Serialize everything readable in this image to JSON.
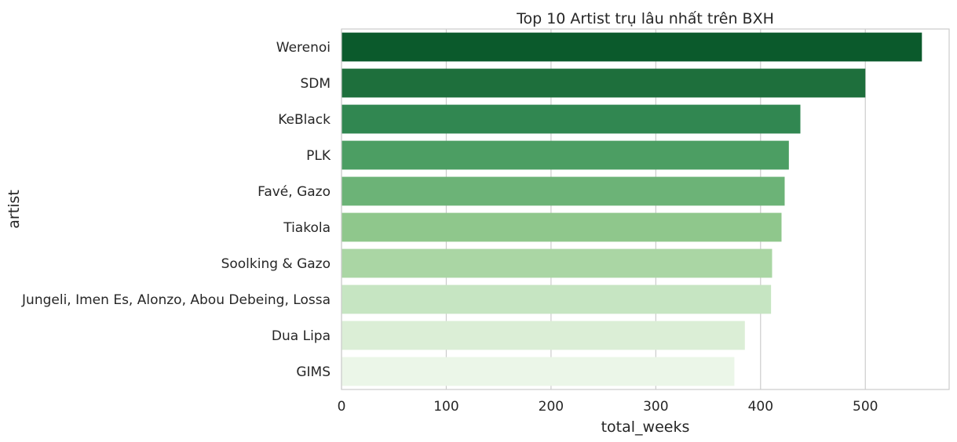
{
  "chart_data": {
    "type": "bar",
    "orientation": "horizontal",
    "title": "Top 10 Artist trụ lâu nhất trên BXH",
    "xlabel": "total_weeks",
    "ylabel": "artist",
    "xlim": [
      0,
      580
    ],
    "x_ticks": [
      0,
      100,
      200,
      300,
      400,
      500
    ],
    "grid": true,
    "categories": [
      "Werenoi",
      "SDM",
      "KeBlack",
      "PLK",
      "Favé, Gazo",
      "Tiakola",
      "Soolking & Gazo",
      "Jungeli, Imen Es, Alonzo, Abou Debeing, Lossa",
      "Dua Lipa",
      "GIMS"
    ],
    "values": [
      554,
      500,
      438,
      427,
      423,
      420,
      411,
      410,
      385,
      375
    ],
    "colors": [
      "#0b5a2c",
      "#1e6f3c",
      "#318751",
      "#4c9e63",
      "#6cb377",
      "#8fc78c",
      "#aad6a4",
      "#c6e5c2",
      "#dbeed6",
      "#ebf6e8"
    ]
  }
}
